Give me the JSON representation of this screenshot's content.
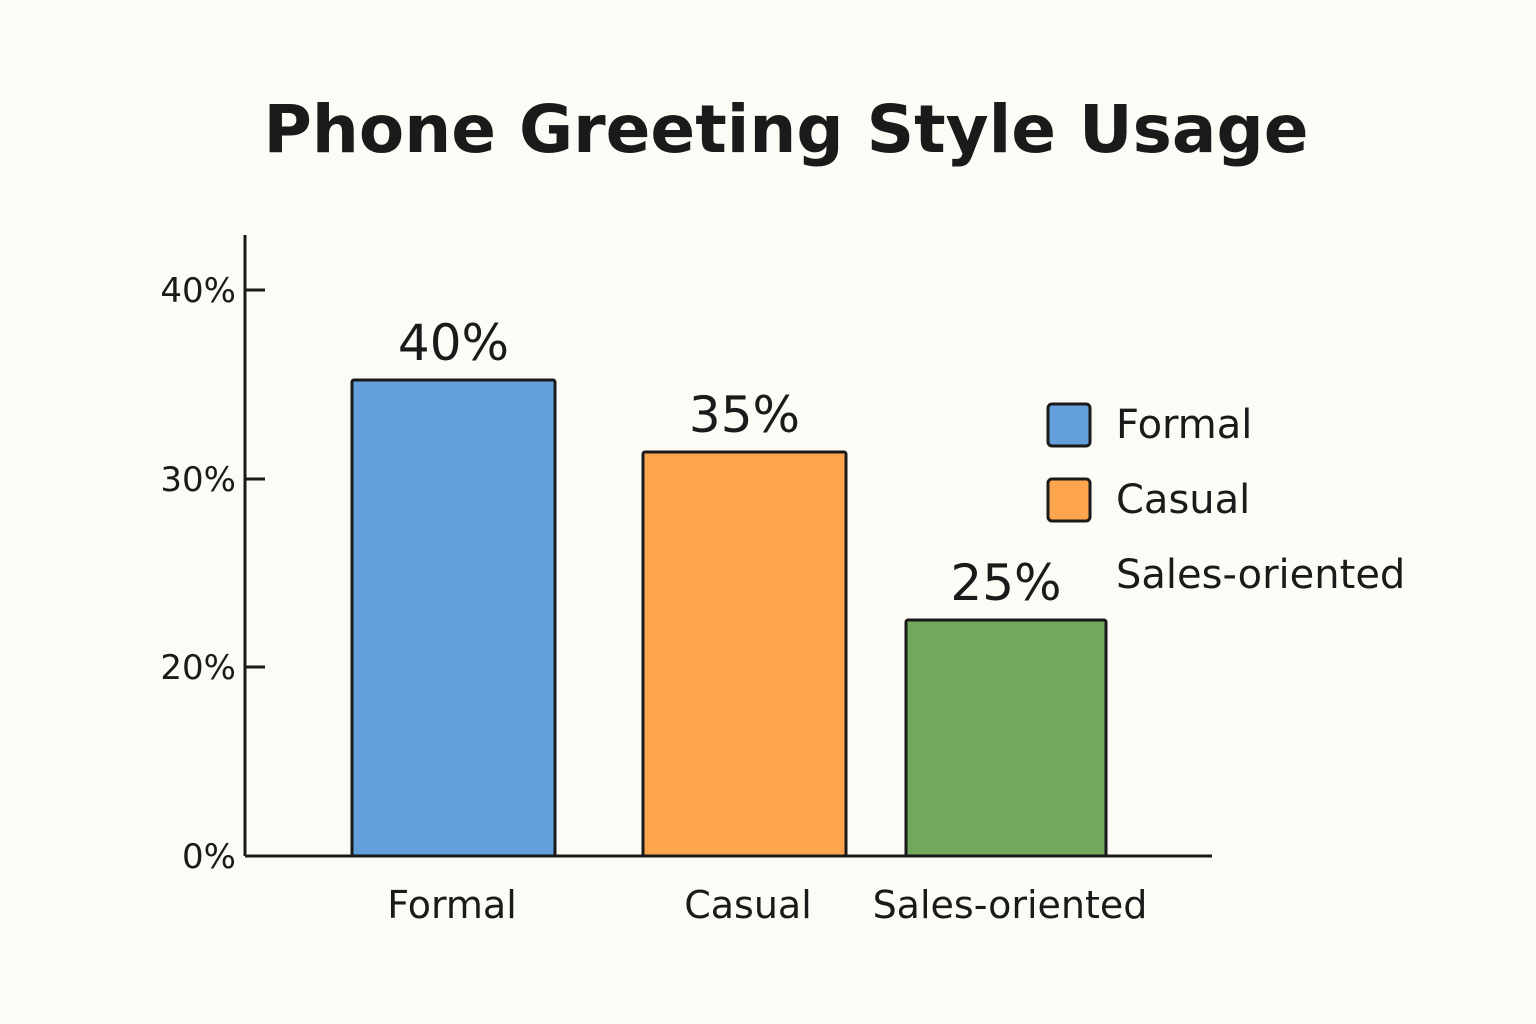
{
  "chart_data": {
    "type": "bar",
    "title": "Phone Greeting Style Usage",
    "xlabel": "",
    "ylabel": "",
    "categories": [
      "Formal",
      "Casual",
      "Sales-oriented"
    ],
    "values": [
      40,
      35,
      25
    ],
    "data_labels": [
      "40%",
      "35%",
      "25%"
    ],
    "colors": [
      "#629fdb",
      "#fca54d",
      "#72a75e"
    ],
    "y_ticks": [
      0,
      20,
      30,
      40
    ],
    "y_tick_labels": [
      "0%",
      "20%",
      "30%",
      "40%"
    ],
    "ylim": [
      0,
      43
    ],
    "grid": false,
    "legend": {
      "placement": "right",
      "items": [
        {
          "label": "Formal",
          "color": "#629fdb",
          "swatch": true
        },
        {
          "label": "Casual",
          "color": "#fca54d",
          "swatch": true
        },
        {
          "label": "Sales-oriented",
          "color": "",
          "swatch": false
        }
      ]
    }
  }
}
